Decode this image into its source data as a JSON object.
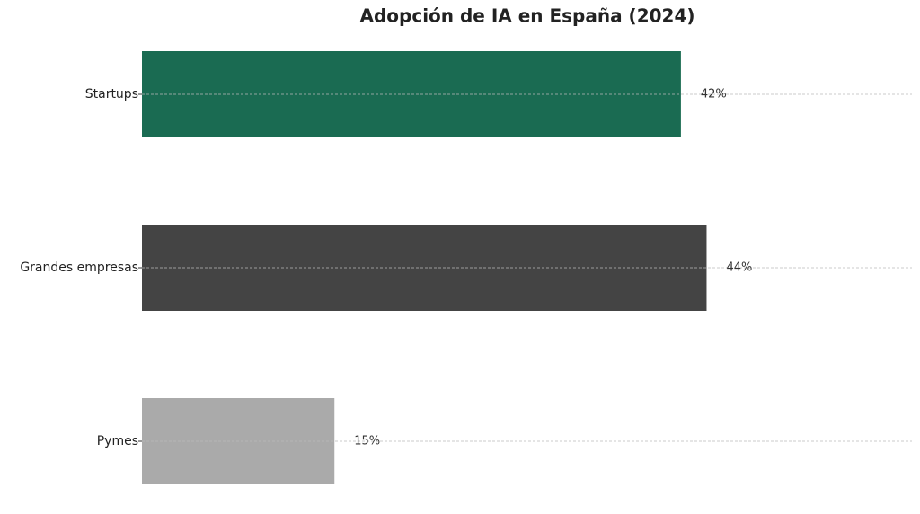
{
  "chart_data": {
    "type": "barh",
    "title": "Adopción de IA en España (2024)",
    "categories": [
      "Startups",
      "Grandes empresas",
      "Pymes"
    ],
    "values": [
      42,
      44,
      15
    ],
    "value_labels": [
      "42%",
      "44%",
      "15%"
    ],
    "colors": [
      "#1a6b52",
      "#444444",
      "#aaaaaa"
    ],
    "xlim": [
      0,
      60
    ],
    "grid": true
  }
}
